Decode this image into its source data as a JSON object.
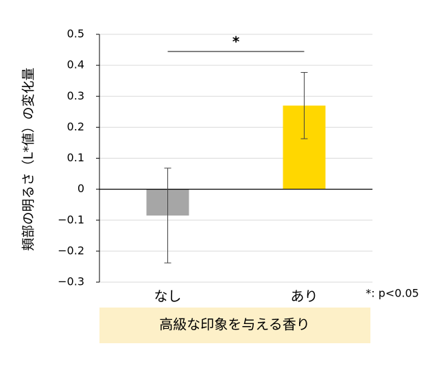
{
  "chart_data": {
    "type": "bar",
    "y_label": "頬部の明るさ（L*値）の変化量",
    "x_label": "高級な印象を与える香り",
    "categories": [
      "なし",
      "あり"
    ],
    "values": [
      -0.085,
      0.27
    ],
    "errors": [
      0.153,
      0.107
    ],
    "colors": [
      "#a6a6a6",
      "#ffd700"
    ],
    "ylim": [
      -0.3,
      0.5
    ],
    "yticks": [
      {
        "value": -0.3,
        "label": "−0.3"
      },
      {
        "value": -0.2,
        "label": "−0.2"
      },
      {
        "value": -0.1,
        "label": "−0.1"
      },
      0,
      0.1,
      0.2,
      0.3,
      0.4,
      0.5
    ],
    "grid": true,
    "significance": "*",
    "note": "*: p<0.05"
  }
}
